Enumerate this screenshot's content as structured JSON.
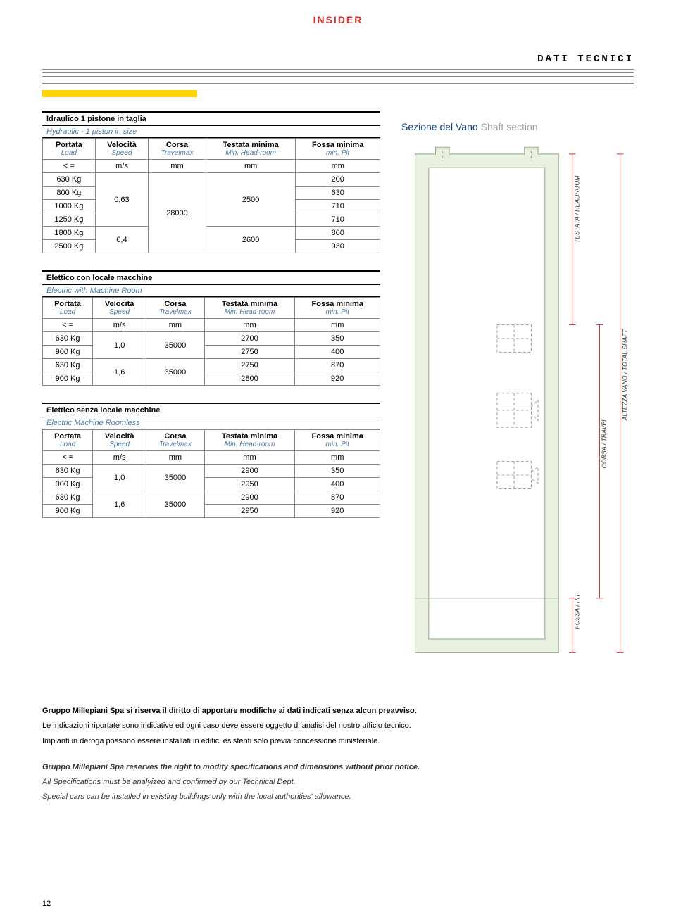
{
  "brand": "INSIDER",
  "section_title": "DATI TECNICI",
  "shaft_title_it": "Sezione del Vano",
  "shaft_title_en": "Shaft section",
  "headers": {
    "portata": "Portata",
    "portata_en": "Load",
    "velocita": "Velocità",
    "velocita_en": "Speed",
    "corsa": "Corsa",
    "corsa_en": "Travelmax",
    "testata": "Testata minima",
    "testata_en": "Min. Head-room",
    "fossa": "Fossa minima",
    "fossa_en": "min. Pit",
    "leq": "< =",
    "u_ms": "m/s",
    "u_mm": "mm"
  },
  "table1": {
    "title_it": "Idraulico 1 pistone in taglia",
    "title_en": "Hydraulic - 1 piston in size",
    "rows": [
      {
        "load": "630 Kg",
        "speed": "",
        "corsa": "",
        "testata": "",
        "fossa": "200"
      },
      {
        "load": "800 Kg",
        "speed": "",
        "corsa": "",
        "testata": "2500",
        "fossa": "630"
      },
      {
        "load": "1000 Kg",
        "speed": "0,63",
        "corsa": "",
        "testata": "",
        "fossa": "710"
      },
      {
        "load": "1250 Kg",
        "speed": "",
        "corsa": "28000",
        "testata": "",
        "fossa": "710"
      },
      {
        "load": "1800 Kg",
        "speed": "",
        "corsa": "",
        "testata": "2600",
        "fossa": "860"
      },
      {
        "load": "2500 Kg",
        "speed": "0,4",
        "corsa": "",
        "testata": "",
        "fossa": "930"
      }
    ],
    "speed1": "0,63",
    "speed2": "0,4",
    "corsa": "28000",
    "testata1": "2500",
    "testata2": "2600",
    "fossa": [
      "200",
      "630",
      "710",
      "710",
      "860",
      "930"
    ],
    "loads": [
      "630 Kg",
      "800 Kg",
      "1000 Kg",
      "1250 Kg",
      "1800 Kg",
      "2500 Kg"
    ]
  },
  "table2": {
    "title_it": "Elettico con locale macchine",
    "title_en": "Electric with Machine Room",
    "loads": [
      "630 Kg",
      "900 Kg",
      "630 Kg",
      "900 Kg"
    ],
    "speed1": "1,0",
    "speed2": "1,6",
    "corsa": "35000",
    "testata": [
      "2700",
      "2750",
      "2750",
      "2800"
    ],
    "fossa": [
      "350",
      "400",
      "870",
      "920"
    ]
  },
  "table3": {
    "title_it": "Elettico senza locale macchine",
    "title_en": "Electric Machine Roomless",
    "loads": [
      "630 Kg",
      "900 Kg",
      "630 Kg",
      "900 Kg"
    ],
    "speed1": "1,0",
    "speed2": "1,6",
    "corsa": "35000",
    "testata": [
      "2900",
      "2950",
      "2900",
      "2950"
    ],
    "fossa": [
      "350",
      "400",
      "870",
      "920"
    ]
  },
  "diagram_labels": {
    "testata": "TESTATA / HEADROOM",
    "altezza": "ALTEZZA VANO / TOTAL SHAFT",
    "corsa": "CORSA / TRAVEL",
    "fossa": "FOSSA / PIT"
  },
  "footer": {
    "it1": "Gruppo Millepiani Spa si riserva il diritto di apportare modifiche ai dati indicati senza alcun preavviso.",
    "it2": "Le indicazioni riportate sono indicative ed ogni caso deve essere oggetto di analisi del nostro ufficio tecnico.",
    "it3": "Impianti in deroga possono essere installati in edifici esistenti solo previa concessione ministeriale.",
    "en1": "Gruppo Millepiani Spa reserves the right to modify specifications and dimensions without prior notice.",
    "en2": "All Specifications must be analyized and confirmed by our Technical Dept.",
    "en3": "Special cars can be installed in existing buildings only with the local authorities' allowance."
  },
  "page_num": "12",
  "colors": {
    "brand": "#d32f2f",
    "yellow": "#ffd400",
    "blue": "#0a3c7a",
    "grey": "#9aa0a6",
    "green_fill": "#e8f0e0",
    "green_stroke": "#8aa67e"
  }
}
